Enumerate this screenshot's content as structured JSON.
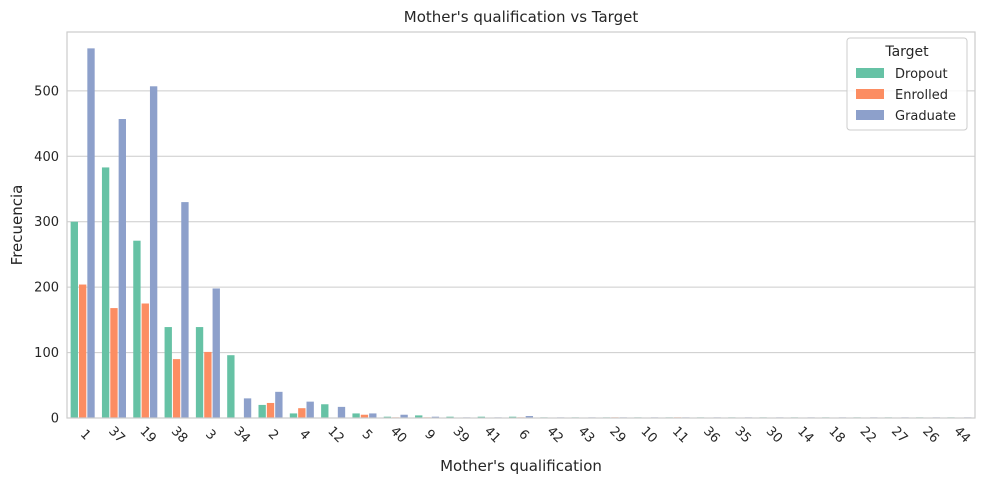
{
  "chart_data": {
    "type": "bar",
    "title": "Mother's qualification vs Target",
    "xlabel": "Mother's qualification",
    "ylabel": "Frecuencia",
    "ylim": [
      0,
      590
    ],
    "yticks": [
      0,
      100,
      200,
      300,
      400,
      500
    ],
    "grid": "horizontal",
    "legend_title": "Target",
    "legend_position": "top-right",
    "categories": [
      "1",
      "37",
      "19",
      "38",
      "3",
      "34",
      "2",
      "4",
      "12",
      "5",
      "40",
      "9",
      "39",
      "41",
      "6",
      "42",
      "43",
      "29",
      "10",
      "11",
      "36",
      "35",
      "30",
      "14",
      "18",
      "22",
      "27",
      "26",
      "44"
    ],
    "series": [
      {
        "name": "Dropout",
        "color": "#66c2a5",
        "values": [
          300,
          383,
          271,
          139,
          139,
          96,
          20,
          7,
          21,
          7,
          2,
          4,
          2,
          2,
          2,
          1,
          1,
          1,
          1,
          1,
          1,
          1,
          1,
          1,
          1,
          1,
          1,
          1,
          1
        ]
      },
      {
        "name": "Enrolled",
        "color": "#fc8d62",
        "values": [
          204,
          168,
          175,
          90,
          101,
          0,
          23,
          15,
          0,
          5,
          1,
          1,
          0,
          0,
          1,
          0,
          0,
          1,
          0,
          1,
          0,
          0,
          0,
          0,
          0,
          0,
          0,
          0,
          0
        ]
      },
      {
        "name": "Graduate",
        "color": "#8da0cb",
        "values": [
          565,
          457,
          507,
          330,
          198,
          30,
          40,
          25,
          17,
          7,
          5,
          2,
          1,
          1,
          3,
          1,
          1,
          1,
          1,
          1,
          1,
          1,
          1,
          1,
          1,
          1,
          1,
          1,
          1
        ]
      }
    ]
  }
}
